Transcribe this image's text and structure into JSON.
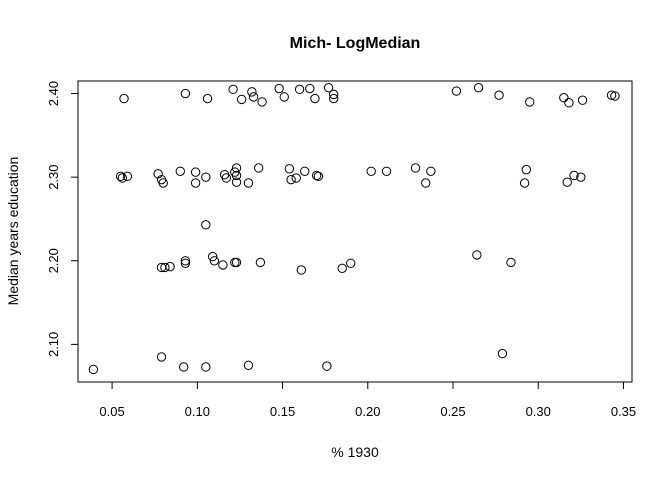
{
  "chart_data": {
    "type": "scatter",
    "title": "Mich- LogMedian",
    "xlabel": "% 1930",
    "ylabel": "Median years education",
    "xlim": [
      0.03,
      0.355
    ],
    "ylim": [
      2.055,
      2.415
    ],
    "xticks": [
      "0.05",
      "0.10",
      "0.15",
      "0.20",
      "0.25",
      "0.30",
      "0.35"
    ],
    "yticks": [
      "2.10",
      "2.20",
      "2.30",
      "2.40"
    ],
    "grid": false,
    "marker": "open-circle",
    "points": [
      {
        "x": 0.039,
        "y": 2.07
      },
      {
        "x": 0.079,
        "y": 2.085
      },
      {
        "x": 0.092,
        "y": 2.073
      },
      {
        "x": 0.105,
        "y": 2.073
      },
      {
        "x": 0.13,
        "y": 2.075
      },
      {
        "x": 0.176,
        "y": 2.074
      },
      {
        "x": 0.279,
        "y": 2.089
      },
      {
        "x": 0.079,
        "y": 2.192
      },
      {
        "x": 0.081,
        "y": 2.192
      },
      {
        "x": 0.084,
        "y": 2.193
      },
      {
        "x": 0.093,
        "y": 2.2
      },
      {
        "x": 0.093,
        "y": 2.197
      },
      {
        "x": 0.105,
        "y": 2.243
      },
      {
        "x": 0.109,
        "y": 2.205
      },
      {
        "x": 0.11,
        "y": 2.2
      },
      {
        "x": 0.115,
        "y": 2.195
      },
      {
        "x": 0.122,
        "y": 2.198
      },
      {
        "x": 0.123,
        "y": 2.198
      },
      {
        "x": 0.137,
        "y": 2.198
      },
      {
        "x": 0.161,
        "y": 2.189
      },
      {
        "x": 0.185,
        "y": 2.191
      },
      {
        "x": 0.19,
        "y": 2.197
      },
      {
        "x": 0.264,
        "y": 2.207
      },
      {
        "x": 0.284,
        "y": 2.198
      },
      {
        "x": 0.055,
        "y": 2.301
      },
      {
        "x": 0.056,
        "y": 2.299
      },
      {
        "x": 0.059,
        "y": 2.301
      },
      {
        "x": 0.077,
        "y": 2.304
      },
      {
        "x": 0.079,
        "y": 2.297
      },
      {
        "x": 0.08,
        "y": 2.293
      },
      {
        "x": 0.09,
        "y": 2.307
      },
      {
        "x": 0.099,
        "y": 2.306
      },
      {
        "x": 0.099,
        "y": 2.293
      },
      {
        "x": 0.105,
        "y": 2.3
      },
      {
        "x": 0.116,
        "y": 2.303
      },
      {
        "x": 0.117,
        "y": 2.299
      },
      {
        "x": 0.122,
        "y": 2.306
      },
      {
        "x": 0.123,
        "y": 2.311
      },
      {
        "x": 0.123,
        "y": 2.302
      },
      {
        "x": 0.123,
        "y": 2.294
      },
      {
        "x": 0.13,
        "y": 2.293
      },
      {
        "x": 0.136,
        "y": 2.311
      },
      {
        "x": 0.154,
        "y": 2.31
      },
      {
        "x": 0.155,
        "y": 2.297
      },
      {
        "x": 0.158,
        "y": 2.299
      },
      {
        "x": 0.163,
        "y": 2.307
      },
      {
        "x": 0.17,
        "y": 2.302
      },
      {
        "x": 0.171,
        "y": 2.301
      },
      {
        "x": 0.202,
        "y": 2.307
      },
      {
        "x": 0.211,
        "y": 2.307
      },
      {
        "x": 0.228,
        "y": 2.311
      },
      {
        "x": 0.234,
        "y": 2.293
      },
      {
        "x": 0.237,
        "y": 2.307
      },
      {
        "x": 0.293,
        "y": 2.309
      },
      {
        "x": 0.292,
        "y": 2.293
      },
      {
        "x": 0.317,
        "y": 2.294
      },
      {
        "x": 0.321,
        "y": 2.302
      },
      {
        "x": 0.325,
        "y": 2.3
      },
      {
        "x": 0.057,
        "y": 2.394
      },
      {
        "x": 0.093,
        "y": 2.4
      },
      {
        "x": 0.106,
        "y": 2.394
      },
      {
        "x": 0.121,
        "y": 2.405
      },
      {
        "x": 0.126,
        "y": 2.393
      },
      {
        "x": 0.132,
        "y": 2.402
      },
      {
        "x": 0.133,
        "y": 2.396
      },
      {
        "x": 0.138,
        "y": 2.39
      },
      {
        "x": 0.148,
        "y": 2.406
      },
      {
        "x": 0.151,
        "y": 2.396
      },
      {
        "x": 0.16,
        "y": 2.405
      },
      {
        "x": 0.166,
        "y": 2.406
      },
      {
        "x": 0.169,
        "y": 2.394
      },
      {
        "x": 0.177,
        "y": 2.407
      },
      {
        "x": 0.18,
        "y": 2.399
      },
      {
        "x": 0.18,
        "y": 2.394
      },
      {
        "x": 0.252,
        "y": 2.403
      },
      {
        "x": 0.265,
        "y": 2.407
      },
      {
        "x": 0.277,
        "y": 2.398
      },
      {
        "x": 0.295,
        "y": 2.39
      },
      {
        "x": 0.315,
        "y": 2.395
      },
      {
        "x": 0.318,
        "y": 2.389
      },
      {
        "x": 0.326,
        "y": 2.392
      },
      {
        "x": 0.343,
        "y": 2.398
      },
      {
        "x": 0.345,
        "y": 2.397
      }
    ]
  }
}
